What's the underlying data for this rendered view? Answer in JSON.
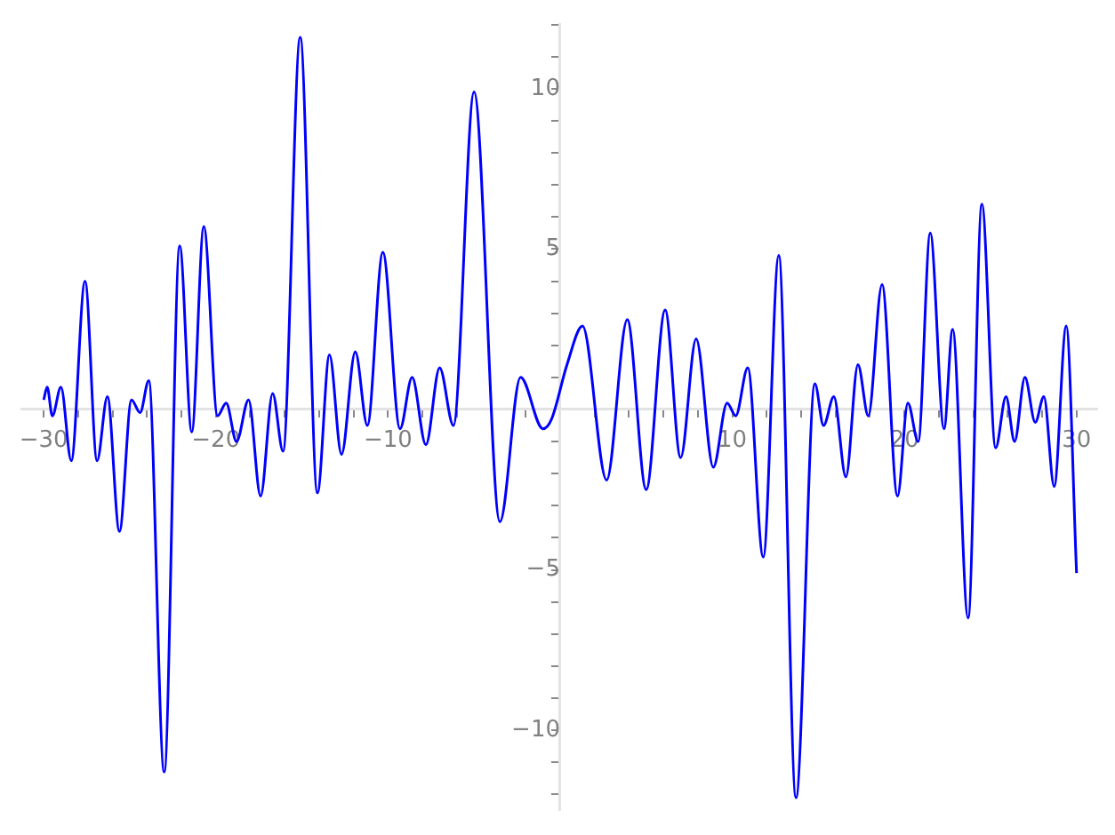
{
  "chart_data": {
    "type": "line",
    "marker": "none",
    "line_style": "solid",
    "grid": false,
    "legend": false,
    "xlim": [
      -31.3,
      31.2
    ],
    "ylim": [
      -12.5,
      12
    ],
    "xticks": [
      -30,
      {
        "value": -28,
        "label": null
      },
      {
        "value": -26,
        "label": null
      },
      {
        "value": -24,
        "label": null
      },
      {
        "value": -22,
        "label": null
      },
      -20,
      {
        "value": -18,
        "label": null
      },
      {
        "value": -16,
        "label": null
      },
      {
        "value": -14,
        "label": null
      },
      {
        "value": -12,
        "label": null
      },
      -10,
      {
        "value": -8,
        "label": null
      },
      {
        "value": -6,
        "label": null
      },
      {
        "value": -4,
        "label": null
      },
      {
        "value": -2,
        "label": null
      },
      {
        "value": 2,
        "label": null
      },
      {
        "value": 4,
        "label": null
      },
      {
        "value": 6,
        "label": null
      },
      {
        "value": 8,
        "label": null
      },
      10,
      {
        "value": 12,
        "label": null
      },
      {
        "value": 14,
        "label": null
      },
      {
        "value": 16,
        "label": null
      },
      {
        "value": 18,
        "label": null
      },
      20,
      {
        "value": 22,
        "label": null
      },
      {
        "value": 24,
        "label": null
      },
      {
        "value": 26,
        "label": null
      },
      {
        "value": 28,
        "label": null
      },
      30
    ],
    "yticks": [
      {
        "value": -12,
        "label": null
      },
      {
        "value": -11,
        "label": null
      },
      -10,
      {
        "value": -9,
        "label": null
      },
      {
        "value": -8,
        "label": null
      },
      {
        "value": -7,
        "label": null
      },
      {
        "value": -6,
        "label": null
      },
      -5,
      {
        "value": -4,
        "label": null
      },
      {
        "value": -3,
        "label": null
      },
      {
        "value": -2,
        "label": null
      },
      {
        "value": -1,
        "label": null
      },
      {
        "value": 1,
        "label": null
      },
      {
        "value": 2,
        "label": null
      },
      {
        "value": 3,
        "label": null
      },
      {
        "value": 4,
        "label": null
      },
      5,
      {
        "value": 6,
        "label": null
      },
      {
        "value": 7,
        "label": null
      },
      {
        "value": 8,
        "label": null
      },
      {
        "value": 9,
        "label": null
      },
      10,
      {
        "value": 11,
        "label": null
      },
      {
        "value": 12,
        "label": null
      }
    ],
    "series": [
      {
        "color": "#0000ff",
        "x": [
          -30,
          -29.8,
          -29.5,
          -29.0,
          -28.4,
          -27.6,
          -26.9,
          -26.3,
          -25.6,
          -24.9,
          -24.4,
          -23.9,
          -23.0,
          -22.1,
          -21.4,
          -20.7,
          -19.9,
          -19.4,
          -18.8,
          -18.1,
          -17.4,
          -16.7,
          -16.1,
          -15.1,
          -14.1,
          -13.4,
          -12.7,
          -11.9,
          -11.2,
          -10.3,
          -9.3,
          -8.6,
          -7.8,
          -7.0,
          -6.2,
          -5.0,
          -3.5,
          -2.3,
          -1.0,
          -0.5,
          0.4,
          1.3,
          2.7,
          3.9,
          5.0,
          6.1,
          7.0,
          7.9,
          8.9,
          9.7,
          10.2,
          10.9,
          11.8,
          12.7,
          13.7,
          14.8,
          15.3,
          15.9,
          16.6,
          17.3,
          17.9,
          18.7,
          19.6,
          20.2,
          20.8,
          21.5,
          22.3,
          22.8,
          23.7,
          24.5,
          25.3,
          25.9,
          26.4,
          27.0,
          27.6,
          28.1,
          28.7,
          29.4,
          30.0
        ],
        "values": [
          0.3,
          0.7,
          -0.2,
          0.7,
          -1.6,
          4.0,
          -1.6,
          0.4,
          -3.8,
          0.3,
          -0.1,
          0.9,
          -11.3,
          5.1,
          -0.7,
          5.7,
          -0.2,
          0.2,
          -1.0,
          0.3,
          -2.7,
          0.5,
          -1.3,
          11.6,
          -2.6,
          1.7,
          -1.4,
          1.8,
          -0.5,
          4.9,
          -0.6,
          1.0,
          -1.1,
          1.3,
          -0.5,
          9.9,
          -3.5,
          1.0,
          -0.6,
          -0.3,
          1.4,
          2.6,
          -2.2,
          2.8,
          -2.5,
          3.1,
          -1.5,
          2.2,
          -1.8,
          0.2,
          -0.2,
          1.3,
          -4.6,
          4.8,
          -12.1,
          0.8,
          -0.5,
          0.4,
          -2.1,
          1.4,
          -0.2,
          3.9,
          -2.7,
          0.2,
          -1.0,
          5.5,
          -0.6,
          2.5,
          -6.5,
          6.4,
          -1.2,
          0.4,
          -1.0,
          1.0,
          -0.4,
          0.4,
          -2.4,
          2.6,
          -5.1
        ]
      }
    ]
  }
}
